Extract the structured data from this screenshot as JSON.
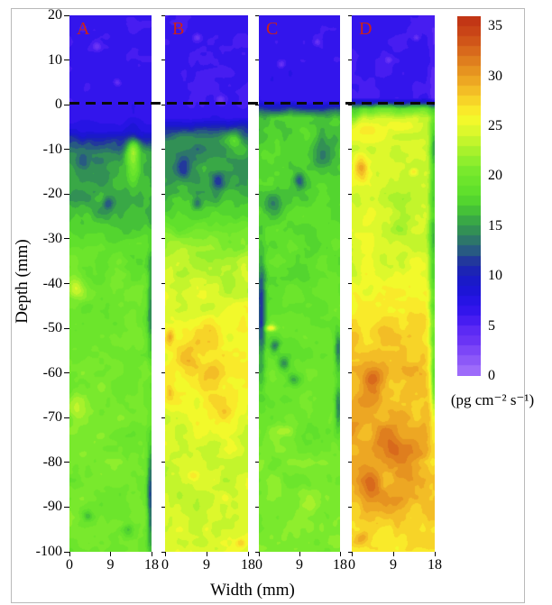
{
  "chart_data": {
    "type": "heatmap",
    "title": "",
    "xlabel": "Width (mm)",
    "ylabel": "Depth (mm)",
    "axes": {
      "x_range": [
        0,
        18
      ],
      "y_range": [
        20,
        -100
      ],
      "y_ticks": [
        20,
        10,
        0,
        -10,
        -20,
        -30,
        -40,
        -50,
        -60,
        -70,
        -80,
        -90,
        -100
      ],
      "x_ticks": [
        0,
        9,
        18
      ]
    },
    "interface_line": {
      "depth": 0,
      "style": "dashed",
      "color": "#0a0a0a"
    },
    "panel_label_color": "#cc2317",
    "colorbar": {
      "min": 0,
      "max": 36,
      "tick_labels": [
        35,
        30,
        25,
        20,
        15,
        10,
        5,
        0
      ],
      "unit_label": "(pg cm⁻² s⁻¹)",
      "band_step": 1,
      "stops": [
        "#9d6bfa",
        "#8c58f8",
        "#7c46f7",
        "#6a34f5",
        "#5c2af4",
        "#471df1",
        "#3315ec",
        "#2614e4",
        "#1d15d6",
        "#1a1ac8",
        "#1c24b4",
        "#22389c",
        "#285a82",
        "#2d766a",
        "#329055",
        "#39a846",
        "#45c138",
        "#53d52f",
        "#60e02c",
        "#6ce52c",
        "#79e92d",
        "#8fee2d",
        "#a8f12c",
        "#c3f52c",
        "#ddf82c",
        "#f2f92b",
        "#f9ea2a",
        "#f7d428",
        "#f3bd26",
        "#eda723",
        "#e69320",
        "#df7e1e",
        "#d8691c",
        "#d05519",
        "#c94417",
        "#c23615",
        "#bd2d13"
      ]
    },
    "profile_format": "pairs of [depth_mm, flux_value]",
    "features_format": "blobs of [x_mm, depth_mm, radius_x_mm, radius_y_mm, delta_value]",
    "panels": [
      {
        "label": "A",
        "profile": [
          [
            20,
            5.8
          ],
          [
            1,
            5.8
          ],
          [
            -3,
            6.2
          ],
          [
            -6,
            7.5
          ],
          [
            -8,
            11
          ],
          [
            -11,
            14
          ],
          [
            -18,
            15
          ],
          [
            -24,
            15.5
          ],
          [
            -28,
            16.5
          ],
          [
            -32,
            18
          ],
          [
            -38,
            19
          ],
          [
            -50,
            19.5
          ],
          [
            -70,
            19.8
          ],
          [
            -100,
            19.3
          ]
        ],
        "features": [
          [
            6,
            13,
            0.9,
            0.9,
            -3.2
          ],
          [
            10.5,
            5,
            0.7,
            0.7,
            -2.6
          ],
          [
            14,
            -13,
            1.6,
            5.5,
            6.5
          ],
          [
            14,
            -9.5,
            1.2,
            1.5,
            3
          ],
          [
            3,
            -13,
            1.5,
            2,
            -3.5
          ],
          [
            8.5,
            -22,
            1.2,
            1.5,
            -3.5
          ],
          [
            1.5,
            -41,
            1.8,
            2.5,
            3.5
          ],
          [
            1.5,
            -68,
            2,
            3,
            2.5
          ],
          [
            17.8,
            -45,
            0.7,
            12,
            -5
          ],
          [
            17.8,
            -88,
            0.8,
            12,
            -8
          ],
          [
            13,
            -95,
            1.5,
            1.5,
            -4
          ],
          [
            4,
            -92,
            1.2,
            1.2,
            -3
          ]
        ]
      },
      {
        "label": "B",
        "profile": [
          [
            20,
            5.6
          ],
          [
            0,
            5.7
          ],
          [
            -3,
            6.5
          ],
          [
            -5,
            10
          ],
          [
            -8,
            13.5
          ],
          [
            -14,
            14.5
          ],
          [
            -20,
            15.5
          ],
          [
            -25,
            17.5
          ],
          [
            -30,
            20.5
          ],
          [
            -36,
            22.5
          ],
          [
            -43,
            24
          ],
          [
            -50,
            24.8
          ],
          [
            -58,
            25.2
          ],
          [
            -68,
            24.8
          ],
          [
            -76,
            23.6
          ],
          [
            -88,
            23.2
          ],
          [
            -96,
            24
          ],
          [
            -100,
            24.3
          ]
        ],
        "features": [
          [
            7,
            15,
            0.8,
            0.8,
            -3
          ],
          [
            12,
            1,
            1,
            1,
            -3.2
          ],
          [
            4,
            -14,
            1.8,
            2.5,
            -4
          ],
          [
            11.5,
            -17,
            1.5,
            2,
            -4.5
          ],
          [
            7,
            -22,
            1.2,
            1.5,
            -3
          ],
          [
            15,
            -8,
            2,
            2.5,
            4
          ],
          [
            8,
            -52,
            3,
            4,
            2.5
          ],
          [
            5,
            -57,
            2.5,
            4,
            3
          ],
          [
            10,
            -62,
            3,
            5,
            2.5
          ],
          [
            1,
            -52,
            1,
            2,
            3.5
          ],
          [
            1,
            -64,
            1,
            2,
            3
          ],
          [
            13,
            -69,
            2,
            2,
            2
          ],
          [
            6,
            -83,
            1,
            1,
            2
          ],
          [
            13,
            -88,
            1,
            1,
            2.5
          ],
          [
            9,
            -95,
            1,
            1,
            2
          ],
          [
            16.5,
            -98,
            1,
            1,
            3
          ]
        ]
      },
      {
        "label": "C",
        "profile": [
          [
            20,
            6.0
          ],
          [
            1,
            6.0
          ],
          [
            0,
            8
          ],
          [
            -1.5,
            13
          ],
          [
            -3,
            16.5
          ],
          [
            -10,
            17.2
          ],
          [
            -20,
            17
          ],
          [
            -30,
            17.8
          ],
          [
            -40,
            18.4
          ],
          [
            -55,
            18.8
          ],
          [
            -70,
            19.4
          ],
          [
            -85,
            20
          ],
          [
            -100,
            20
          ]
        ],
        "features": [
          [
            5,
            9,
            0.8,
            0.8,
            -2.8
          ],
          [
            13,
            14,
            0.7,
            0.7,
            -2.6
          ],
          [
            14,
            -11,
            2.5,
            3.5,
            -5
          ],
          [
            9,
            -17,
            1.2,
            1.8,
            -5
          ],
          [
            3,
            -22,
            2,
            2.5,
            -3
          ],
          [
            0.5,
            -47,
            1,
            14,
            -7.5
          ],
          [
            2.6,
            -50,
            1.3,
            0.7,
            7
          ],
          [
            3.5,
            -54,
            1.1,
            1.4,
            -5
          ],
          [
            5.5,
            -58,
            1.3,
            1.6,
            -5
          ],
          [
            7.8,
            -61.5,
            1.6,
            1.6,
            -4
          ],
          [
            17.6,
            -55,
            0.8,
            4,
            -6
          ],
          [
            17.6,
            -68,
            0.8,
            5,
            -6
          ],
          [
            6,
            -73,
            2.2,
            1.3,
            3
          ],
          [
            12,
            -90,
            2,
            2,
            2
          ]
        ]
      },
      {
        "label": "D",
        "profile": [
          [
            20,
            5.6
          ],
          [
            1.5,
            5.6
          ],
          [
            0.5,
            10
          ],
          [
            -1,
            19
          ],
          [
            -3,
            23
          ],
          [
            -8,
            23.8
          ],
          [
            -25,
            23.6
          ],
          [
            -38,
            24.5
          ],
          [
            -48,
            26.2
          ],
          [
            -58,
            27.6
          ],
          [
            -72,
            28.6
          ],
          [
            -88,
            28
          ],
          [
            -95,
            26.8
          ],
          [
            -100,
            26.2
          ]
        ],
        "features": [
          [
            8,
            10,
            0.8,
            0.8,
            -2.8
          ],
          [
            14,
            15,
            0.7,
            0.7,
            -2.6
          ],
          [
            2,
            -14,
            1.6,
            3,
            5.5
          ],
          [
            4,
            -6,
            4,
            2.2,
            2.8
          ],
          [
            11,
            -5,
            3,
            1.5,
            2.2
          ],
          [
            13.5,
            -15,
            0.9,
            0.9,
            3.5
          ],
          [
            11,
            -25,
            3.5,
            9,
            -1.8
          ],
          [
            0.4,
            -2.5,
            1.2,
            2,
            -4
          ],
          [
            17.7,
            -35,
            0.9,
            33,
            -7.5
          ],
          [
            17.9,
            -62,
            0.6,
            8,
            -5
          ],
          [
            17.9,
            -10,
            0.7,
            6,
            -4
          ],
          [
            4.5,
            -62,
            2.2,
            3.5,
            4.5
          ],
          [
            8,
            -76,
            3,
            5,
            3
          ],
          [
            4,
            -85,
            2.5,
            4,
            3.5
          ],
          [
            12,
            -80,
            2.5,
            5,
            2
          ],
          [
            9,
            -90,
            3,
            3,
            2
          ],
          [
            2,
            -97,
            1.5,
            1.5,
            2
          ],
          [
            7,
            -50,
            2.5,
            2.5,
            2
          ]
        ]
      }
    ]
  }
}
